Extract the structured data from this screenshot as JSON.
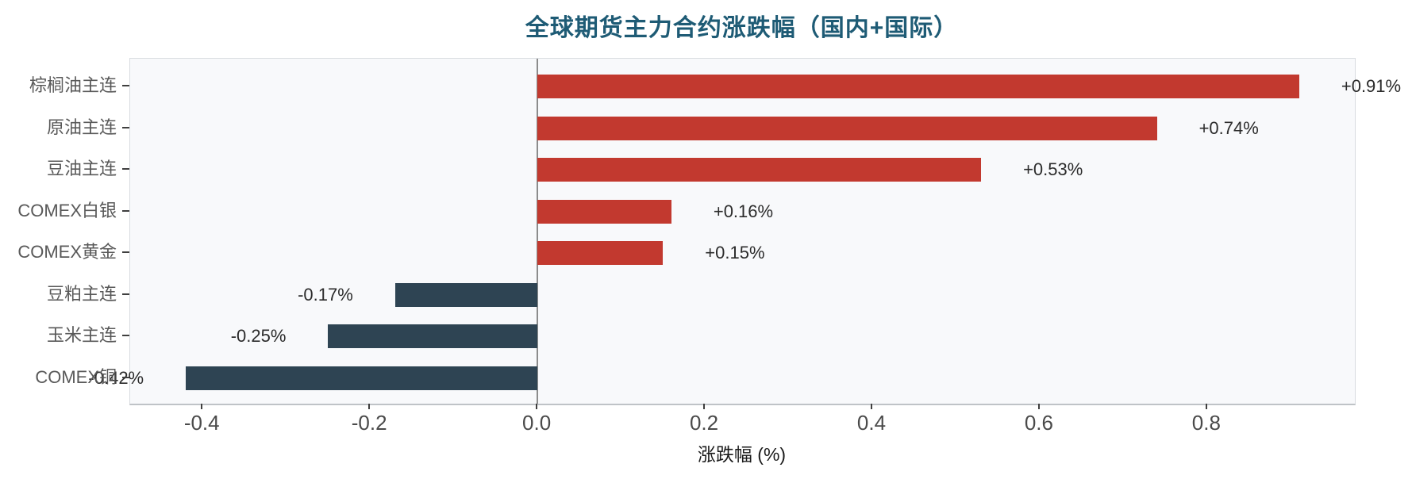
{
  "title": "全球期货主力合约涨跌幅（国内+国际）",
  "chart_data": {
    "type": "bar",
    "orientation": "horizontal",
    "title": "全球期货主力合约涨跌幅（国内+国际）",
    "xlabel": "涨跌幅 (%)",
    "categories": [
      "棕榈油主连",
      "原油主连",
      "豆油主连",
      "COMEX白银",
      "COMEX黄金",
      "豆粕主连",
      "玉米主连",
      "COMEX铜"
    ],
    "values": [
      0.91,
      0.74,
      0.53,
      0.16,
      0.15,
      -0.17,
      -0.25,
      -0.42
    ],
    "value_labels": [
      "+0.91%",
      "+0.74%",
      "+0.53%",
      "+0.16%",
      "+0.15%",
      "-0.17%",
      "-0.25%",
      "-0.42%"
    ],
    "x_ticks": [
      {
        "value": -0.4,
        "label": "-0.4"
      },
      {
        "value": -0.2,
        "label": "-0.2"
      },
      {
        "value": 0.0,
        "label": "0.0"
      },
      {
        "value": 0.2,
        "label": "0.2"
      },
      {
        "value": 0.4,
        "label": "0.4"
      },
      {
        "value": 0.6,
        "label": "0.6"
      },
      {
        "value": 0.8,
        "label": "0.8"
      }
    ],
    "xlim": [
      -0.4865,
      0.9765
    ],
    "grid": false,
    "legend": "none",
    "colors": {
      "positive_bar": "#c2392f",
      "negative_bar": "#2e4453",
      "title": "#1e5b75",
      "plot_background": "#f8f9fb",
      "zero_line": "#8c8c8c"
    }
  }
}
